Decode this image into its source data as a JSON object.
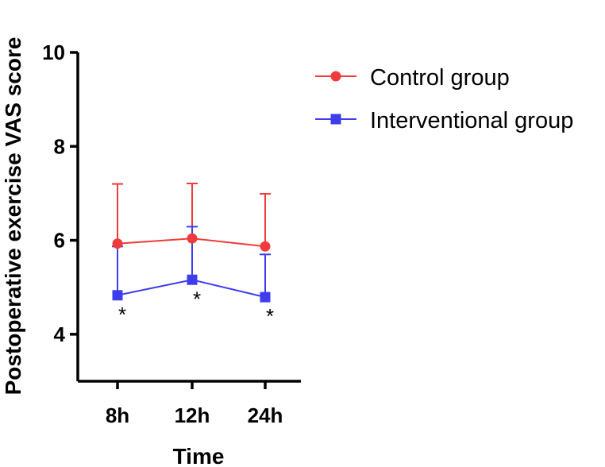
{
  "chart_data": {
    "type": "line",
    "title": "",
    "xlabel": "Time",
    "ylabel": "Postoperative exercise VAS score",
    "categories": [
      "8h",
      "12h",
      "24h"
    ],
    "y_ticks": [
      "4",
      "6",
      "8",
      "10"
    ],
    "ylim": [
      3,
      10
    ],
    "grid": false,
    "legend_position": "top-right",
    "significance_marker": "*",
    "series": [
      {
        "name": "Control group",
        "marker": "circle",
        "color": "#ef3b3b",
        "values": [
          5.93,
          6.04,
          5.87
        ],
        "error_upper": [
          7.2,
          7.21,
          6.99
        ]
      },
      {
        "name": "Interventional group",
        "marker": "square",
        "color": "#3d3ded",
        "values": [
          4.83,
          5.16,
          4.79
        ],
        "error_upper": [
          5.87,
          6.29,
          5.7
        ],
        "significant": [
          true,
          true,
          true
        ]
      }
    ]
  }
}
